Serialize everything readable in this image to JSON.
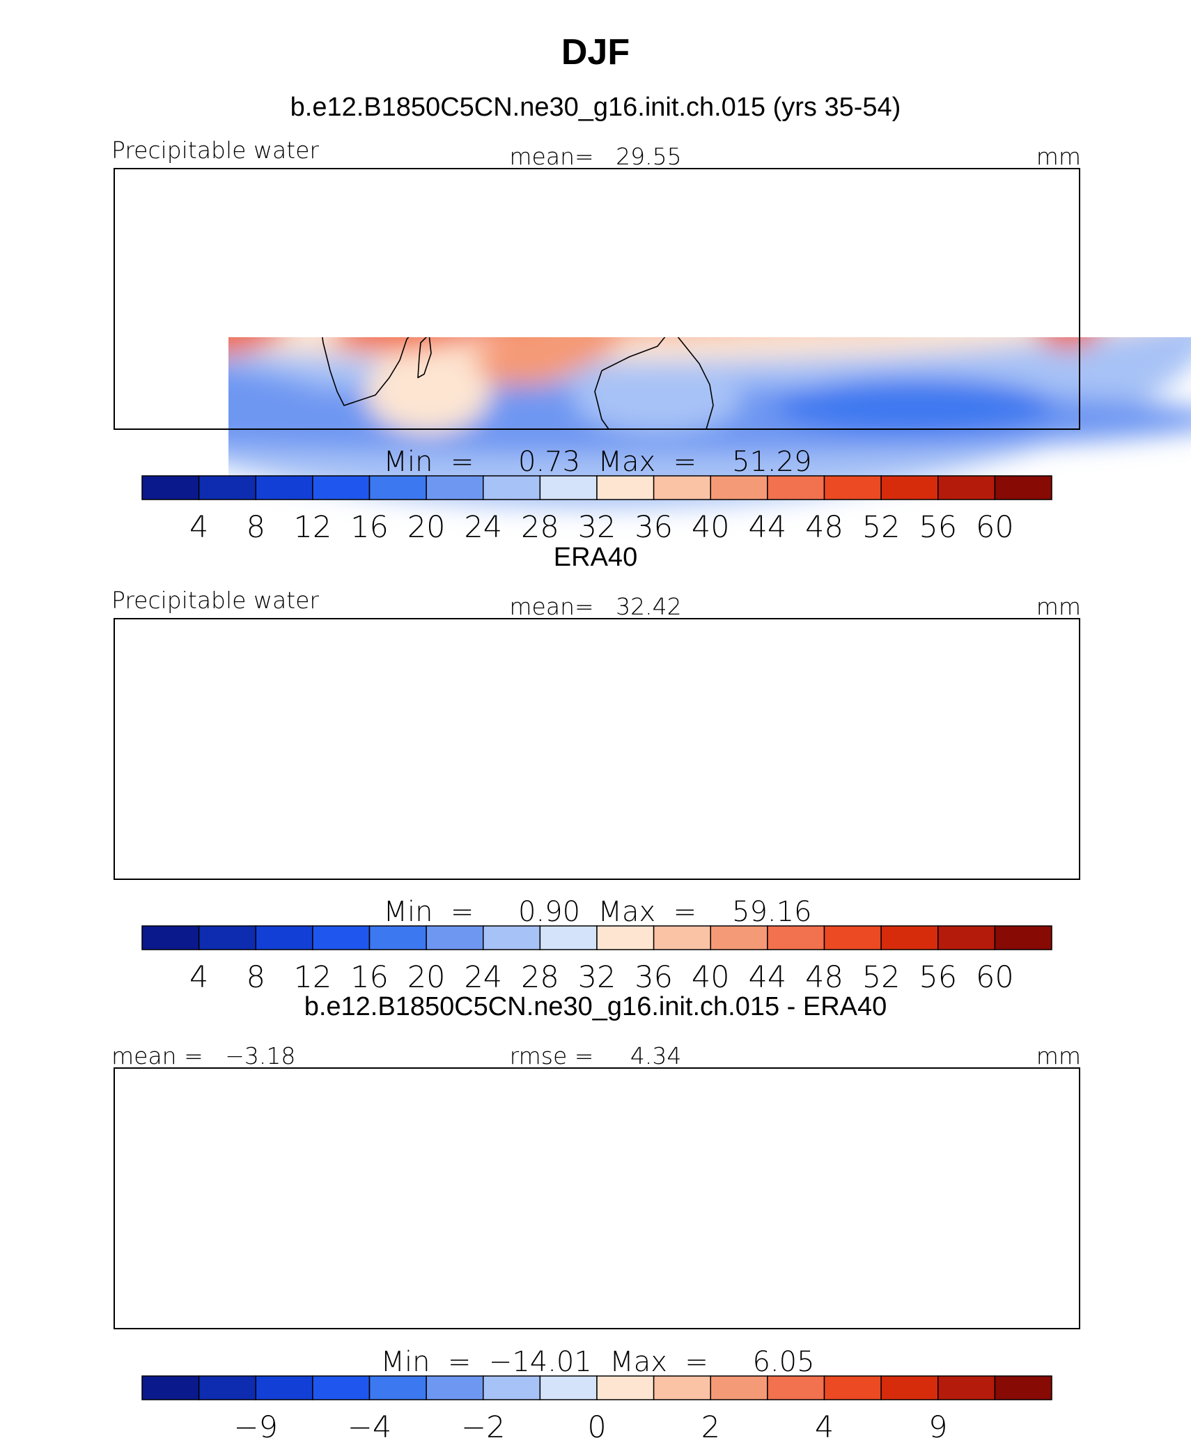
{
  "title": "DJF",
  "panels": [
    {
      "title": "b.e12.B1850C5CN.ne30_g16.init.ch.015 (yrs 35-54)",
      "left_label": "Precipitable water",
      "center_label": "mean=   29.55",
      "right_label": "mm",
      "stats_label": "Min  =     0.73  Max  =    51.29",
      "colorbar_ticks": [
        "4",
        "8",
        "12",
        "16",
        "20",
        "24",
        "28",
        "32",
        "36",
        "40",
        "44",
        "48",
        "52",
        "56",
        "60"
      ],
      "field": "model"
    },
    {
      "title": "ERA40",
      "left_label": "Precipitable water",
      "center_label": "mean=   32.42",
      "right_label": "mm",
      "stats_label": "Min  =     0.90  Max  =    59.16",
      "colorbar_ticks": [
        "4",
        "8",
        "12",
        "16",
        "20",
        "24",
        "28",
        "32",
        "36",
        "40",
        "44",
        "48",
        "52",
        "56",
        "60"
      ],
      "field": "obs"
    },
    {
      "title": "b.e12.B1850C5CN.ne30_g16.init.ch.015 - ERA40",
      "left_label": "mean =   −3.18",
      "center_label": "rmse =     4.34",
      "right_label": "mm",
      "stats_label": "Min  =  −14.01  Max  =     6.05",
      "colorbar_ticks": [
        "−9",
        "−4",
        "−2",
        "0",
        "2",
        "4",
        "9"
      ],
      "field": "diff"
    }
  ],
  "colormap": [
    "#0a1a8c",
    "#0d2cb0",
    "#1240d6",
    "#1f57ee",
    "#3c78f0",
    "#6e97f2",
    "#a7c2f6",
    "#d4e3fa",
    "#fde5d2",
    "#fac3a6",
    "#f59a76",
    "#f2714e",
    "#eb4a22",
    "#d72c0c",
    "#b51b0a",
    "#870a04"
  ]
}
